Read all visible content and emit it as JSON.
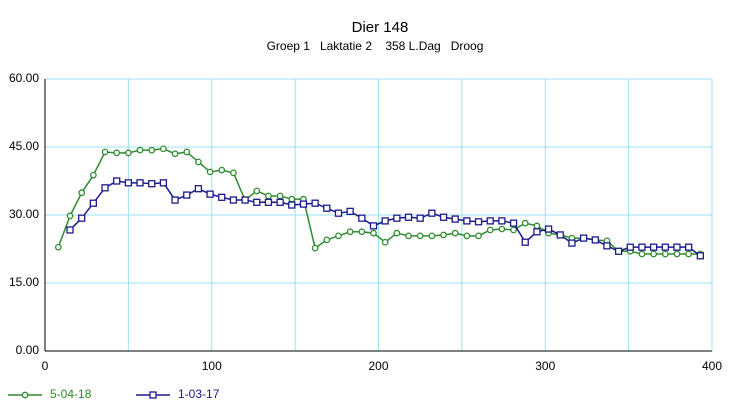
{
  "chart_data": {
    "type": "line",
    "title": "Dier 148",
    "subtitle": "Groep 1   Laktatie 2    358 L.Dag   Droog",
    "xlim": [
      0,
      400
    ],
    "xticks": [
      0,
      100,
      200,
      300,
      400
    ],
    "xgrid": [
      50,
      150,
      250,
      350
    ],
    "ylim": [
      0,
      60
    ],
    "yticks": [
      {
        "value": 0,
        "label": "0.00"
      },
      {
        "value": 15,
        "label": "15.00"
      },
      {
        "value": 30,
        "label": "30.00"
      },
      {
        "value": 45,
        "label": "45.00"
      },
      {
        "value": 60,
        "label": "60.00"
      }
    ],
    "grid": true,
    "series": [
      {
        "name": "5-04-18",
        "color": "#2e8b2e",
        "marker": "circle",
        "x": [
          8,
          15,
          22,
          29,
          36,
          43,
          50,
          57,
          64,
          71,
          78,
          85,
          92,
          99,
          106,
          113,
          120,
          127,
          134,
          141,
          148,
          155,
          162,
          169,
          176,
          183,
          190,
          197,
          204,
          211,
          218,
          225,
          232,
          239,
          246,
          253,
          260,
          267,
          274,
          281,
          288,
          295,
          302,
          309,
          316,
          323,
          330,
          337,
          344,
          351,
          358,
          365,
          372,
          379,
          386,
          393
        ],
        "values": [
          22.9,
          29.8,
          34.9,
          38.8,
          43.9,
          43.7,
          43.7,
          44.3,
          44.3,
          44.6,
          43.5,
          43.9,
          41.7,
          39.5,
          39.9,
          39.3,
          33.3,
          35.3,
          34.2,
          34.2,
          33.5,
          33.5,
          22.7,
          24.5,
          25.4,
          26.3,
          26.3,
          26,
          24,
          26,
          25.4,
          25.4,
          25.4,
          25.6,
          26,
          25.4,
          25.4,
          26.7,
          26.9,
          26.7,
          28.2,
          27.6,
          26,
          25.6,
          24.9,
          24.9,
          24.5,
          24.3,
          22,
          22,
          21.4,
          21.4,
          21.4,
          21.4,
          21.4,
          21.4
        ]
      },
      {
        "name": "1-03-17",
        "color": "#1a1a8c",
        "marker": "square",
        "x": [
          15,
          22,
          29,
          36,
          43,
          50,
          57,
          64,
          71,
          78,
          85,
          92,
          99,
          106,
          113,
          120,
          127,
          134,
          141,
          148,
          155,
          162,
          169,
          176,
          183,
          190,
          197,
          204,
          211,
          218,
          225,
          232,
          239,
          246,
          253,
          260,
          267,
          274,
          281,
          288,
          295,
          302,
          309,
          316,
          323,
          330,
          337,
          344,
          351,
          358,
          365,
          372,
          379,
          386,
          393
        ],
        "values": [
          26.7,
          29.3,
          32.6,
          36,
          37.5,
          37.1,
          37.1,
          36.9,
          37.1,
          33.3,
          34.4,
          35.8,
          34.6,
          33.9,
          33.3,
          33.3,
          32.8,
          32.8,
          32.8,
          32.2,
          32.4,
          32.6,
          31.5,
          30.4,
          30.8,
          29.3,
          27.6,
          28.7,
          29.3,
          29.5,
          29.3,
          30.4,
          29.5,
          29.1,
          28.7,
          28.5,
          28.7,
          28.7,
          28.2,
          24,
          26.3,
          26.9,
          25.6,
          23.8,
          24.9,
          24.5,
          23.2,
          22,
          22.9,
          22.9,
          22.9,
          22.9,
          22.9,
          22.9,
          21
        ]
      }
    ]
  }
}
